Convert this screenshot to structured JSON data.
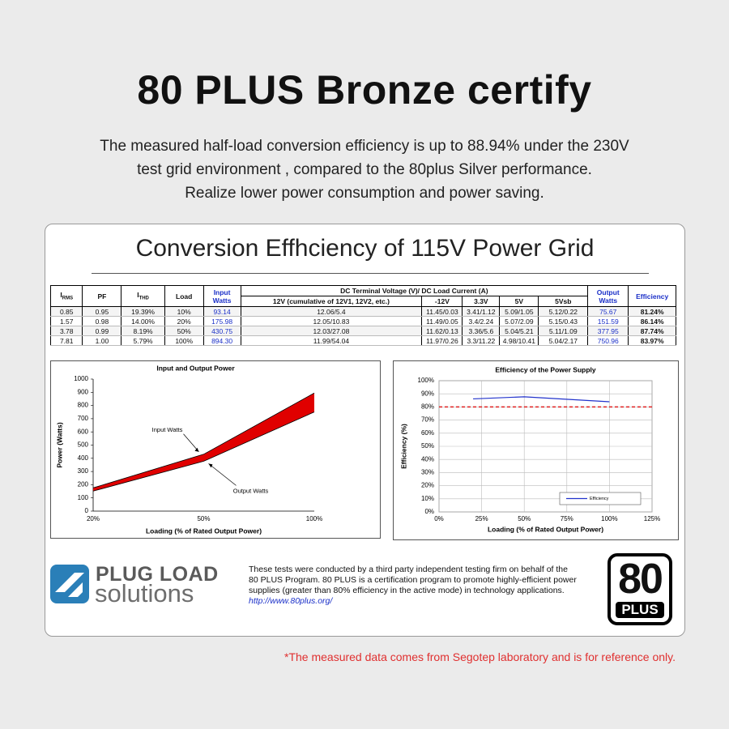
{
  "header": {
    "title": "80 PLUS Bronze certify",
    "lines": [
      "The measured half-load conversion efficiency is up to 88.94% under the 230V",
      "test grid environment , compared to the 80plus Silver performance.",
      "Realize lower power consumption and power saving."
    ]
  },
  "card_title": "Conversion Effhciency of 115V Power Grid",
  "table": {
    "head": [
      {
        "main": "I",
        "sub": "RMS"
      },
      "PF",
      {
        "main": "I",
        "sub": "THD"
      },
      "Load",
      "Input Watts",
      "Output Watts",
      "Efficiency"
    ],
    "group_header": "DC Terminal Voltage (V)/ DC Load Current (A)",
    "subhead": [
      "12V (cumulative of 12V1, 12V2, etc.)",
      "-12V",
      "3.3V",
      "5V",
      "5Vsb"
    ],
    "rows": [
      [
        "0.85",
        "0.95",
        "19.39%",
        "10%",
        "93.14",
        "12.06/5.4",
        "11.45/0.03",
        "3.41/1.12",
        "5.09/1.05",
        "5.12/0.22",
        "75.67",
        "81.24%"
      ],
      [
        "1.57",
        "0.98",
        "14.00%",
        "20%",
        "175.98",
        "12.05/10.83",
        "11.49/0.05",
        "3.4/2.24",
        "5.07/2.09",
        "5.15/0.43",
        "151.59",
        "86.14%"
      ],
      [
        "3.78",
        "0.99",
        "8.19%",
        "50%",
        "430.75",
        "12.03/27.08",
        "11.62/0.13",
        "3.36/5.6",
        "5.04/5.21",
        "5.11/1.09",
        "377.95",
        "87.74%"
      ],
      [
        "7.81",
        "1.00",
        "5.79%",
        "100%",
        "894.30",
        "11.99/54.04",
        "11.97/0.26",
        "3.3/11.22",
        "4.98/10.41",
        "5.04/2.17",
        "750.96",
        "83.97%"
      ]
    ]
  },
  "chart_data": [
    {
      "type": "area",
      "title": "Input and Output Power",
      "x_label": "Loading (% of Rated Output Power)",
      "y_label": "Power (Watts)",
      "categories": [
        "20%",
        "50%",
        "100%"
      ],
      "series": [
        {
          "name": "Input Watts",
          "color": "#000000",
          "values": [
            175.98,
            430.75,
            894.3
          ]
        },
        {
          "name": "Output Watts",
          "color": "#000000",
          "values": [
            151.59,
            377.95,
            750.96
          ]
        }
      ],
      "fill_color": "#e00000",
      "ylim": [
        0,
        1000
      ],
      "yticks": [
        0,
        100,
        200,
        300,
        400,
        500,
        600,
        700,
        800,
        900,
        1000
      ],
      "grid": false
    },
    {
      "type": "line",
      "title": "Efficiency of the Power Supply",
      "x_label": "Loading (% of Rated Output Power)",
      "y_label": "Efficiency (%)",
      "x": [
        20,
        50,
        100
      ],
      "series": [
        {
          "name": "Efficiency",
          "color": "#2233cc",
          "values": [
            86.14,
            87.74,
            83.97
          ]
        }
      ],
      "xlim": [
        0,
        125
      ],
      "xticks": [
        {
          "value": 0,
          "label": "0%"
        },
        {
          "value": 25,
          "label": "25%"
        },
        {
          "value": 50,
          "label": "50%"
        },
        {
          "value": 75,
          "label": "75%"
        },
        {
          "value": 100,
          "label": "100%"
        },
        {
          "value": 125,
          "label": "125%"
        }
      ],
      "ylim": [
        0,
        100
      ],
      "yticks": [
        {
          "value": 0,
          "label": "0%"
        },
        {
          "value": 10,
          "label": "10%"
        },
        {
          "value": 20,
          "label": "20%"
        },
        {
          "value": 30,
          "label": "30%"
        },
        {
          "value": 40,
          "label": "40%"
        },
        {
          "value": 50,
          "label": "50%"
        },
        {
          "value": 60,
          "label": "60%"
        },
        {
          "value": 70,
          "label": "70%"
        },
        {
          "value": 80,
          "label": "80%"
        },
        {
          "value": 90,
          "label": "90%"
        },
        {
          "value": 100,
          "label": "100%"
        }
      ],
      "threshold": {
        "value": 80,
        "color": "#e02020"
      },
      "grid": true,
      "legend": "lower right"
    }
  ],
  "footer": {
    "logo": {
      "line1": "PLUG LOAD",
      "line2": "solutions"
    },
    "note": [
      "These tests were conducted by a third party independent testing firm on behalf of the",
      "80 PLUS Program. 80 PLUS is a certification program to promote highly-efficient power",
      "supplies (greater than 80% efficiency in the active mode) in technology applications."
    ],
    "link": "http://www.80plus.org/",
    "badge": {
      "number": "80",
      "word": "PLUS"
    }
  },
  "footnote": "*The measured data comes from Segotep laboratory and is for reference only."
}
